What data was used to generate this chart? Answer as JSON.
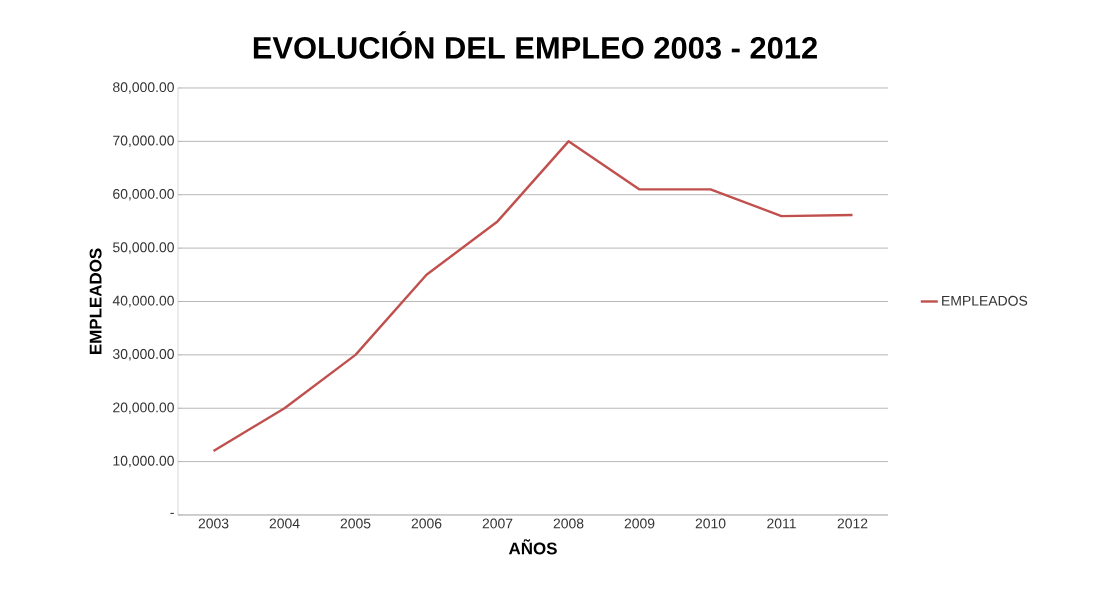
{
  "chart_data": {
    "type": "line",
    "title": "EVOLUCIÓN DEL EMPLEO 2003 - 2012",
    "xlabel": "AÑOS",
    "ylabel": "EMPLEADOS",
    "categories": [
      "2003",
      "2004",
      "2005",
      "2006",
      "2007",
      "2008",
      "2009",
      "2010",
      "2011",
      "2012"
    ],
    "series": [
      {
        "name": "EMPLEADOS",
        "color": "#c0504d",
        "values": [
          12000,
          20000,
          30000,
          45000,
          55000,
          70000,
          61000,
          61000,
          56000,
          56200
        ]
      }
    ],
    "ylim": [
      0,
      80000
    ],
    "yticks": [
      {
        "value": 0,
        "label": "-"
      },
      {
        "value": 10000,
        "label": "10,000.00"
      },
      {
        "value": 20000,
        "label": "20,000.00"
      },
      {
        "value": 30000,
        "label": "30,000.00"
      },
      {
        "value": 40000,
        "label": "40,000.00"
      },
      {
        "value": 50000,
        "label": "50,000.00"
      },
      {
        "value": 60000,
        "label": "60,000.00"
      },
      {
        "value": 70000,
        "label": "70,000.00"
      },
      {
        "value": 80000,
        "label": "80,000.00"
      }
    ],
    "grid": "y",
    "legend": "right",
    "marker": "none",
    "line_style": "solid"
  }
}
